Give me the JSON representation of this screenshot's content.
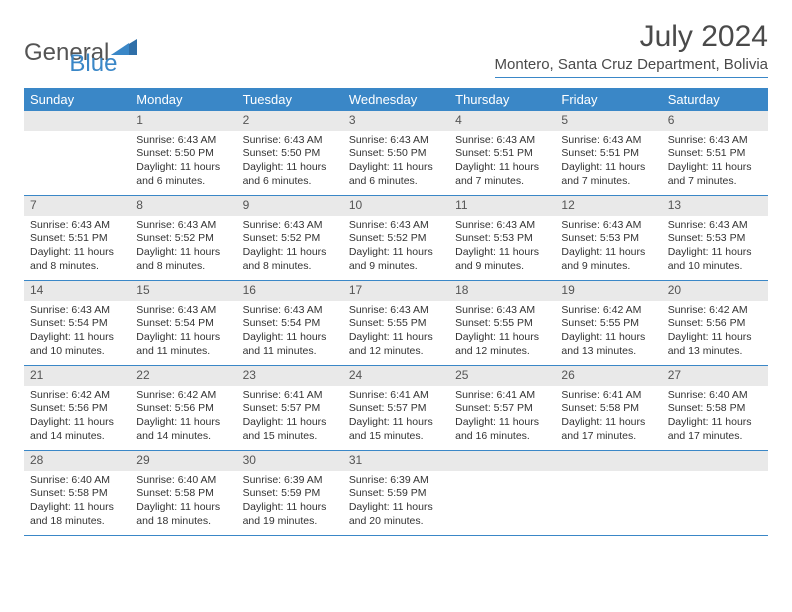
{
  "brand": {
    "part1": "General",
    "part2": "Blue"
  },
  "title": "July 2024",
  "location": "Montero, Santa Cruz Department, Bolivia",
  "colors": {
    "accent": "#3a87c7",
    "header_bg": "#3a87c7",
    "daynum_bg": "#e9e9e9",
    "text": "#333333",
    "title_text": "#4a4a4a"
  },
  "layout": {
    "columns": 7,
    "rows": 5,
    "blank_leading_cells": 1,
    "blank_trailing_cells": 3
  },
  "weekdays": [
    "Sunday",
    "Monday",
    "Tuesday",
    "Wednesday",
    "Thursday",
    "Friday",
    "Saturday"
  ],
  "days": [
    {
      "n": "1",
      "sr": "6:43 AM",
      "ss": "5:50 PM",
      "dl": "11 hours and 6 minutes."
    },
    {
      "n": "2",
      "sr": "6:43 AM",
      "ss": "5:50 PM",
      "dl": "11 hours and 6 minutes."
    },
    {
      "n": "3",
      "sr": "6:43 AM",
      "ss": "5:50 PM",
      "dl": "11 hours and 6 minutes."
    },
    {
      "n": "4",
      "sr": "6:43 AM",
      "ss": "5:51 PM",
      "dl": "11 hours and 7 minutes."
    },
    {
      "n": "5",
      "sr": "6:43 AM",
      "ss": "5:51 PM",
      "dl": "11 hours and 7 minutes."
    },
    {
      "n": "6",
      "sr": "6:43 AM",
      "ss": "5:51 PM",
      "dl": "11 hours and 7 minutes."
    },
    {
      "n": "7",
      "sr": "6:43 AM",
      "ss": "5:51 PM",
      "dl": "11 hours and 8 minutes."
    },
    {
      "n": "8",
      "sr": "6:43 AM",
      "ss": "5:52 PM",
      "dl": "11 hours and 8 minutes."
    },
    {
      "n": "9",
      "sr": "6:43 AM",
      "ss": "5:52 PM",
      "dl": "11 hours and 8 minutes."
    },
    {
      "n": "10",
      "sr": "6:43 AM",
      "ss": "5:52 PM",
      "dl": "11 hours and 9 minutes."
    },
    {
      "n": "11",
      "sr": "6:43 AM",
      "ss": "5:53 PM",
      "dl": "11 hours and 9 minutes."
    },
    {
      "n": "12",
      "sr": "6:43 AM",
      "ss": "5:53 PM",
      "dl": "11 hours and 9 minutes."
    },
    {
      "n": "13",
      "sr": "6:43 AM",
      "ss": "5:53 PM",
      "dl": "11 hours and 10 minutes."
    },
    {
      "n": "14",
      "sr": "6:43 AM",
      "ss": "5:54 PM",
      "dl": "11 hours and 10 minutes."
    },
    {
      "n": "15",
      "sr": "6:43 AM",
      "ss": "5:54 PM",
      "dl": "11 hours and 11 minutes."
    },
    {
      "n": "16",
      "sr": "6:43 AM",
      "ss": "5:54 PM",
      "dl": "11 hours and 11 minutes."
    },
    {
      "n": "17",
      "sr": "6:43 AM",
      "ss": "5:55 PM",
      "dl": "11 hours and 12 minutes."
    },
    {
      "n": "18",
      "sr": "6:43 AM",
      "ss": "5:55 PM",
      "dl": "11 hours and 12 minutes."
    },
    {
      "n": "19",
      "sr": "6:42 AM",
      "ss": "5:55 PM",
      "dl": "11 hours and 13 minutes."
    },
    {
      "n": "20",
      "sr": "6:42 AM",
      "ss": "5:56 PM",
      "dl": "11 hours and 13 minutes."
    },
    {
      "n": "21",
      "sr": "6:42 AM",
      "ss": "5:56 PM",
      "dl": "11 hours and 14 minutes."
    },
    {
      "n": "22",
      "sr": "6:42 AM",
      "ss": "5:56 PM",
      "dl": "11 hours and 14 minutes."
    },
    {
      "n": "23",
      "sr": "6:41 AM",
      "ss": "5:57 PM",
      "dl": "11 hours and 15 minutes."
    },
    {
      "n": "24",
      "sr": "6:41 AM",
      "ss": "5:57 PM",
      "dl": "11 hours and 15 minutes."
    },
    {
      "n": "25",
      "sr": "6:41 AM",
      "ss": "5:57 PM",
      "dl": "11 hours and 16 minutes."
    },
    {
      "n": "26",
      "sr": "6:41 AM",
      "ss": "5:58 PM",
      "dl": "11 hours and 17 minutes."
    },
    {
      "n": "27",
      "sr": "6:40 AM",
      "ss": "5:58 PM",
      "dl": "11 hours and 17 minutes."
    },
    {
      "n": "28",
      "sr": "6:40 AM",
      "ss": "5:58 PM",
      "dl": "11 hours and 18 minutes."
    },
    {
      "n": "29",
      "sr": "6:40 AM",
      "ss": "5:58 PM",
      "dl": "11 hours and 18 minutes."
    },
    {
      "n": "30",
      "sr": "6:39 AM",
      "ss": "5:59 PM",
      "dl": "11 hours and 19 minutes."
    },
    {
      "n": "31",
      "sr": "6:39 AM",
      "ss": "5:59 PM",
      "dl": "11 hours and 20 minutes."
    }
  ],
  "labels": {
    "sunrise": "Sunrise:",
    "sunset": "Sunset:",
    "daylight": "Daylight:"
  }
}
